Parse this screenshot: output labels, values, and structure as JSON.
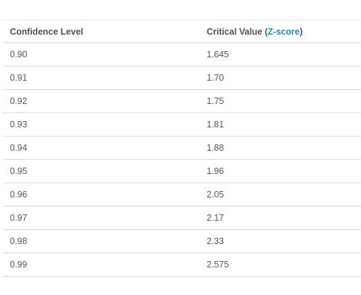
{
  "table": {
    "headers": {
      "confidence": "Confidence Level",
      "critical_prefix": "Critical Value (",
      "critical_link": "Z-score",
      "critical_suffix": ")"
    },
    "rows": [
      {
        "confidence": "0.90",
        "critical": "1.645"
      },
      {
        "confidence": "0.91",
        "critical": "1.70"
      },
      {
        "confidence": "0.92",
        "critical": "1.75"
      },
      {
        "confidence": "0.93",
        "critical": "1.81"
      },
      {
        "confidence": "0.94",
        "critical": "1.88"
      },
      {
        "confidence": "0.95",
        "critical": "1.96"
      },
      {
        "confidence": "0.96",
        "critical": "2.05"
      },
      {
        "confidence": "0.97",
        "critical": "2.17"
      },
      {
        "confidence": "0.98",
        "critical": "2.33"
      },
      {
        "confidence": "0.99",
        "critical": "2.575"
      }
    ]
  },
  "colors": {
    "link": "#1b8fb0",
    "text": "#555555",
    "divider": "#dadada"
  }
}
